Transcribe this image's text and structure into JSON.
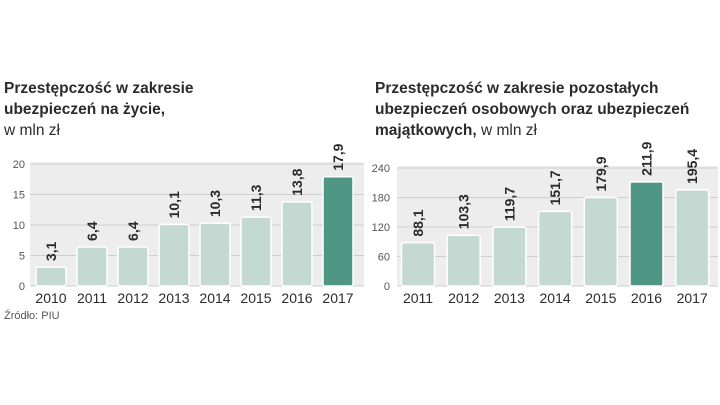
{
  "left": {
    "title_line1": "Przestępczość w zakresie",
    "title_line2": "ubezpieczeń na życie,",
    "unit": "w mln zł"
  },
  "right": {
    "title_line1": "Przestępczość w zakresie pozostałych",
    "title_line2": "ubezpieczeń osobowych oraz ubezpieczeń",
    "title_line3": "majątkowych,",
    "unit": "w mln zł"
  },
  "source": "Źródło: PIU",
  "colors": {
    "bar": "#c4d9d1",
    "bar_highlight": "#4f9685",
    "plot_bg": "#ededed",
    "grid": "#cfcfcf"
  },
  "chart_data": [
    {
      "type": "bar",
      "categories": [
        "2010",
        "2011",
        "2012",
        "2013",
        "2014",
        "2015",
        "2016",
        "2017"
      ],
      "values": [
        3.1,
        6.4,
        6.4,
        10.1,
        10.3,
        11.3,
        13.8,
        17.9
      ],
      "labels": [
        "3,1",
        "6,4",
        "6,4",
        "10,1",
        "10,3",
        "11,3",
        "13,8",
        "17,9"
      ],
      "yticks": [
        "0",
        "5",
        "10",
        "15",
        "20"
      ],
      "ylim": [
        0,
        20
      ],
      "highlight": "2017",
      "grid": true
    },
    {
      "type": "bar",
      "categories": [
        "2011",
        "2012",
        "2013",
        "2014",
        "2015",
        "2016",
        "2017"
      ],
      "values": [
        88.1,
        103.3,
        119.7,
        151.7,
        179.9,
        211.9,
        195.4
      ],
      "labels": [
        "88,1",
        "103,3",
        "119,7",
        "151,7",
        "179,9",
        "211,9",
        "195,4"
      ],
      "yticks": [
        "0",
        "60",
        "120",
        "180",
        "240"
      ],
      "ylim": [
        0,
        240
      ],
      "highlight": "2016",
      "grid": true
    }
  ]
}
